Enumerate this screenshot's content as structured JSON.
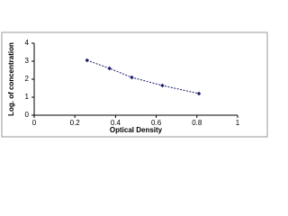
{
  "chart_data": {
    "type": "line",
    "x_label": "Optical Density",
    "y_label": "Log. of concentration",
    "x": [
      0.26,
      0.37,
      0.48,
      0.63,
      0.81
    ],
    "series": [
      {
        "color": "#1a1a6e",
        "values": [
          3.05,
          2.6,
          2.1,
          1.65,
          1.2
        ]
      }
    ],
    "xlim": [
      0,
      1
    ],
    "xticks": [
      0,
      0.2,
      0.4,
      0.6,
      0.8,
      1
    ],
    "ylim": [
      0,
      4
    ],
    "yticks": [
      0,
      1,
      2,
      3,
      4
    ]
  }
}
